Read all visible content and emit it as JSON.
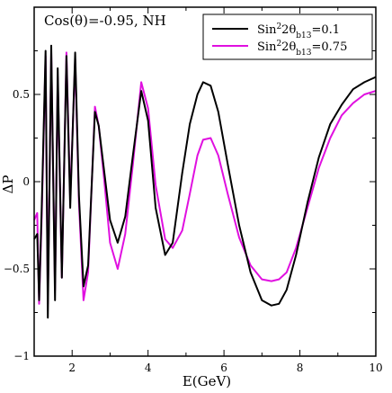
{
  "chart_data": {
    "type": "line",
    "title": "Cos(θ)=-0.95, NH",
    "xlabel": "E(GeV)",
    "ylabel": "ΔP",
    "xlim": [
      1,
      10
    ],
    "ylim": [
      -1,
      1
    ],
    "x_ticks": [
      2,
      4,
      6,
      8,
      10
    ],
    "y_ticks": [
      -1,
      -0.5,
      0,
      0.5
    ],
    "legend_position": "top-right",
    "grid": false,
    "series": [
      {
        "name": "Sin²2θb13=0.1",
        "legend_base": "Sin",
        "legend_sup": "2",
        "legend_mid": "2θ",
        "legend_sub": "b13",
        "legend_tail": "=0.1",
        "color": "#000000",
        "x": [
          1.0,
          1.08,
          1.13,
          1.2,
          1.3,
          1.36,
          1.45,
          1.55,
          1.62,
          1.73,
          1.85,
          1.95,
          2.08,
          2.18,
          2.3,
          2.42,
          2.6,
          2.7,
          2.85,
          3.0,
          3.2,
          3.4,
          3.6,
          3.82,
          4.0,
          4.2,
          4.45,
          4.65,
          4.9,
          5.1,
          5.3,
          5.45,
          5.65,
          5.85,
          6.1,
          6.4,
          6.7,
          7.0,
          7.25,
          7.45,
          7.65,
          7.9,
          8.2,
          8.5,
          8.8,
          9.1,
          9.4,
          9.7,
          10.0
        ],
        "y": [
          -0.33,
          -0.3,
          -0.68,
          -0.15,
          0.75,
          -0.78,
          0.78,
          -0.68,
          0.65,
          -0.55,
          0.72,
          -0.15,
          0.74,
          -0.08,
          -0.6,
          -0.48,
          0.4,
          0.32,
          0.05,
          -0.22,
          -0.35,
          -0.2,
          0.15,
          0.52,
          0.35,
          -0.15,
          -0.42,
          -0.35,
          0.05,
          0.33,
          0.5,
          0.57,
          0.55,
          0.4,
          0.1,
          -0.25,
          -0.52,
          -0.68,
          -0.71,
          -0.7,
          -0.62,
          -0.42,
          -0.12,
          0.14,
          0.33,
          0.44,
          0.53,
          0.57,
          0.6
        ]
      },
      {
        "name": "Sin²2θb13=0.75",
        "legend_base": "Sin",
        "legend_sup": "2",
        "legend_mid": "2θ",
        "legend_sub": "b13",
        "legend_tail": "=0.75",
        "color": "#e010e0",
        "x": [
          1.0,
          1.08,
          1.13,
          1.2,
          1.3,
          1.36,
          1.45,
          1.55,
          1.62,
          1.73,
          1.85,
          1.95,
          2.08,
          2.18,
          2.3,
          2.42,
          2.6,
          2.7,
          2.85,
          3.0,
          3.2,
          3.4,
          3.6,
          3.82,
          4.0,
          4.2,
          4.45,
          4.65,
          4.9,
          5.1,
          5.3,
          5.45,
          5.65,
          5.85,
          6.1,
          6.4,
          6.7,
          7.0,
          7.25,
          7.45,
          7.65,
          7.9,
          8.2,
          8.5,
          8.8,
          9.1,
          9.4,
          9.7,
          10.0
        ],
        "y": [
          -0.22,
          -0.18,
          -0.7,
          -0.2,
          0.72,
          -0.7,
          0.74,
          -0.62,
          0.6,
          -0.55,
          0.74,
          -0.1,
          0.7,
          -0.12,
          -0.68,
          -0.52,
          0.43,
          0.32,
          0.0,
          -0.35,
          -0.5,
          -0.3,
          0.1,
          0.57,
          0.42,
          -0.02,
          -0.33,
          -0.38,
          -0.28,
          -0.07,
          0.15,
          0.24,
          0.25,
          0.15,
          -0.07,
          -0.32,
          -0.48,
          -0.56,
          -0.57,
          -0.56,
          -0.52,
          -0.38,
          -0.15,
          0.08,
          0.25,
          0.38,
          0.45,
          0.5,
          0.52
        ]
      }
    ]
  }
}
